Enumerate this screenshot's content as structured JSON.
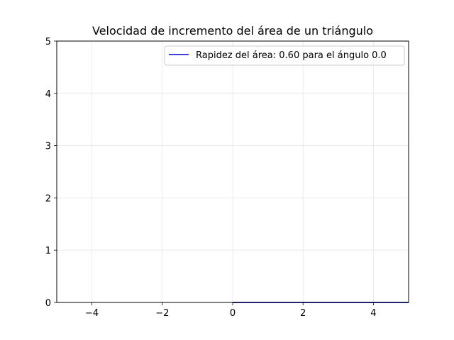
{
  "chart_data": {
    "type": "line",
    "title": "Velocidad de incremento del área de un triángulo",
    "xlabel": "",
    "ylabel": "",
    "xlim": [
      -5,
      5
    ],
    "ylim": [
      0,
      5
    ],
    "grid": true,
    "x_ticks": [
      -4,
      -2,
      0,
      2,
      4
    ],
    "x_tick_labels": [
      "−4",
      "−2",
      "0",
      "2",
      "4"
    ],
    "y_ticks": [
      0,
      1,
      2,
      3,
      4,
      5
    ],
    "y_tick_labels": [
      "0",
      "1",
      "2",
      "3",
      "4",
      "5"
    ],
    "legend_position": "top-right",
    "series": [
      {
        "name": "Rapidez del área: 0.60 para el ángulo 0.0",
        "color": "#0000cc",
        "x": [
          0,
          5
        ],
        "y": [
          0,
          0
        ]
      }
    ]
  }
}
